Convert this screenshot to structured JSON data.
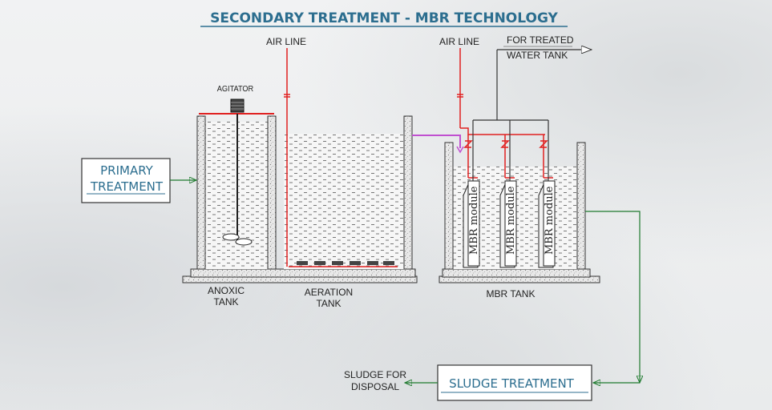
{
  "title": "SECONDARY  TREATMENT - MBR TECHNOLOGY",
  "air_line_1": "AIR LINE",
  "air_line_2": "AIR LINE",
  "treated_water_line1": "FOR TREATED",
  "treated_water_line2": "WATER TANK",
  "agitator": "AGITATOR",
  "primary_treatment_line1": "PRIMARY",
  "primary_treatment_line2": "TREATMENT",
  "anoxic_line1": "ANOXIC",
  "anoxic_line2": "TANK",
  "aeration_line1": "AERATION",
  "aeration_line2": "TANK",
  "mbr_tank": "MBR TANK",
  "mbr_module_label": "MBR  module",
  "sludge_treatment": "SLUDGE  TREATMENT",
  "sludge_disposal_line1": "SLUDGE FOR",
  "sludge_disposal_line2": "DISPOSAL",
  "colors": {
    "title": "#2c6e8f",
    "air_line": "#e02020",
    "flow_arrow": "#1e7a2e",
    "recycle_line": "#c050d0"
  }
}
